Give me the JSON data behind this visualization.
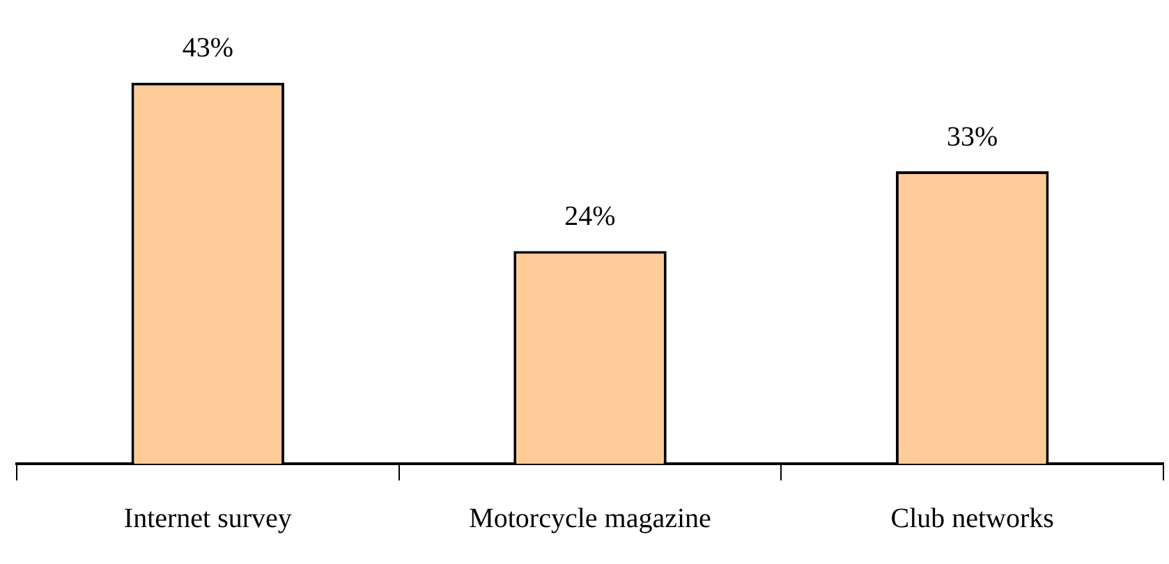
{
  "chart_data": {
    "type": "bar",
    "categories": [
      "Internet survey",
      "Motorcycle magazine",
      "Club networks"
    ],
    "values": [
      43,
      24,
      33
    ],
    "value_labels": [
      "43%",
      "24%",
      "33%"
    ],
    "color": "#ffcc99"
  }
}
